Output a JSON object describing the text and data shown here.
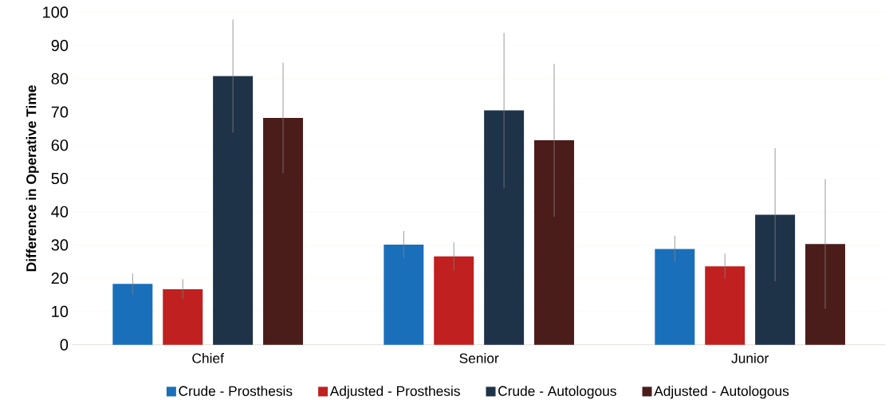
{
  "chart_data": {
    "type": "bar",
    "ylabel": "Difference in Operative Time",
    "categories": [
      "Chief",
      "Senior",
      "Junior"
    ],
    "series": [
      {
        "name": "Crude - Prosthesis",
        "color": "#1a6fba",
        "values": [
          18.3,
          30.1,
          28.8
        ],
        "errors": [
          3.1,
          4.1,
          4.0
        ]
      },
      {
        "name": "Adjusted - Prosthesis",
        "color": "#c0201f",
        "values": [
          16.7,
          26.6,
          23.6
        ],
        "errors": [
          3.0,
          4.2,
          3.8
        ]
      },
      {
        "name": "Crude - Autologous",
        "color": "#1e3248",
        "values": [
          80.8,
          70.5,
          39.1
        ],
        "errors": [
          17.0,
          23.3,
          20.0
        ]
      },
      {
        "name": "Adjusted - Autologous",
        "color": "#4a1c1a",
        "values": [
          68.2,
          61.5,
          30.3
        ],
        "errors": [
          16.6,
          23.0,
          19.5
        ]
      }
    ],
    "ylim": [
      0,
      100
    ],
    "yticks": [
      0,
      10,
      20,
      30,
      40,
      50,
      60,
      70,
      80,
      90,
      100
    ],
    "grid": "y",
    "legend": "bottom"
  }
}
